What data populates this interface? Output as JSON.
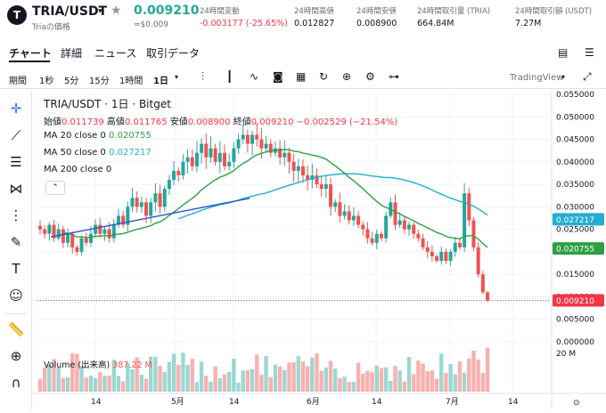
{
  "header": {
    "symbol": "TRIA/USDT",
    "subtitle": "Triaの価格",
    "price": "0.009210",
    "price_sub": "≈$0.009",
    "stats": [
      {
        "label": "24時間変動",
        "value": "-0.003177 (-25.65%)",
        "color": "#f23645"
      },
      {
        "label": "24時間高値",
        "value": "0.012827",
        "color": "#131722"
      },
      {
        "label": "24時間安値",
        "value": "0.008900",
        "color": "#131722"
      },
      {
        "label": "24時間取引量 (TRIA)",
        "value": "664.84M",
        "color": "#131722"
      },
      {
        "label": "24時間取引額 (USDT)",
        "value": "7.27M",
        "color": "#131722"
      }
    ]
  },
  "tabs": [
    "チャート",
    "詳細",
    "ニュース",
    "取引データ"
  ],
  "toolbar": {
    "intervals": [
      "期間",
      "1秒",
      "5分",
      "15分",
      "1時間",
      "1日"
    ],
    "tradingview": "TradingView"
  },
  "legend": {
    "title": "TRIA/USDT · 1日 · Bitget",
    "ohlc_open_label": "始値",
    "ohlc_open": "0.011739",
    "ohlc_high_label": "高値",
    "ohlc_high": "0.011765",
    "ohlc_low_label": "安値",
    "ohlc_low": "0.008900",
    "ohlc_close_label": "終値",
    "ohlc_close": "0.009210",
    "ohlc_change": "−0.002529 (−21.54%)",
    "ma20_label": "MA 20 close 0",
    "ma20_value": "0.020755",
    "ma50_label": "MA 50 close 0",
    "ma50_value": "0.027217",
    "ma200_label": "MA 200 close 0",
    "volume_label": "Volume (出来高)",
    "volume_value": "387.22 M"
  },
  "colors": {
    "up": "#26a69a",
    "down": "#ef5350",
    "ma20": "#2ea043",
    "ma50": "#22aed1",
    "trend": "#2f54c9",
    "accent": "#f0b90b"
  },
  "chart_data": {
    "type": "candlestick",
    "y_ticks": [
      "0.055000",
      "0.050000",
      "0.045000",
      "0.040000",
      "0.035000",
      "0.030000",
      "0.025000",
      "0.020000",
      "0.015000",
      "0.010000",
      "0.005000",
      "0.000000"
    ],
    "ylim": [
      0,
      0.055
    ],
    "x_ticks": [
      "14",
      "5月",
      "14",
      "6月",
      "14",
      "7月",
      "14"
    ],
    "price_labels": [
      {
        "value": "0.027217",
        "color": "#22aed1"
      },
      {
        "value": "0.020755",
        "color": "#2ea043"
      },
      {
        "value": "0.009210",
        "color": "#f23645"
      }
    ],
    "volume_tick": "20 M",
    "closes": [
      0.025,
      0.024,
      0.026,
      0.023,
      0.025,
      0.022,
      0.024,
      0.021,
      0.02,
      0.023,
      0.022,
      0.024,
      0.026,
      0.024,
      0.025,
      0.023,
      0.026,
      0.028,
      0.026,
      0.03,
      0.032,
      0.03,
      0.031,
      0.028,
      0.031,
      0.033,
      0.03,
      0.034,
      0.036,
      0.038,
      0.037,
      0.04,
      0.041,
      0.039,
      0.042,
      0.044,
      0.041,
      0.043,
      0.04,
      0.042,
      0.039,
      0.04,
      0.043,
      0.045,
      0.046,
      0.044,
      0.046,
      0.045,
      0.043,
      0.044,
      0.042,
      0.043,
      0.041,
      0.042,
      0.04,
      0.038,
      0.039,
      0.037,
      0.036,
      0.037,
      0.035,
      0.034,
      0.035,
      0.03,
      0.031,
      0.028,
      0.029,
      0.027,
      0.028,
      0.026,
      0.025,
      0.023,
      0.022,
      0.024,
      0.023,
      0.028,
      0.031,
      0.026,
      0.027,
      0.025,
      0.026,
      0.024,
      0.023,
      0.021,
      0.02,
      0.019,
      0.018,
      0.02,
      0.018,
      0.02,
      0.022,
      0.021,
      0.033,
      0.027,
      0.021,
      0.015,
      0.011,
      0.0092
    ],
    "ma20_value": 0.020755,
    "ma50_value": 0.027217,
    "last_close": 0.00921
  }
}
